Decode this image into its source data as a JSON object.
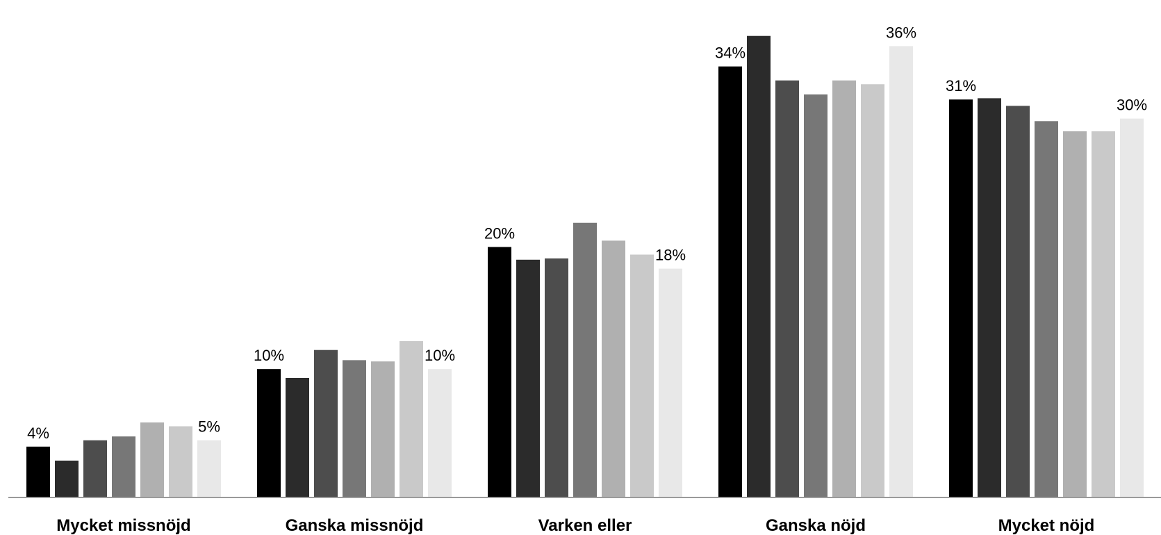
{
  "chart_data": {
    "type": "bar",
    "title": "",
    "xlabel": "",
    "ylabel": "",
    "ylim": [
      0,
      38
    ],
    "grid": false,
    "legend": "none",
    "categories": [
      "Mycket missnöjd",
      "Ganska missnöjd",
      "Varken eller",
      "Ganska nöjd",
      "Mycket nöjd"
    ],
    "series_colors": [
      "#000000",
      "#2b2b2b",
      "#4d4d4d",
      "#777777",
      "#b0b0b0",
      "#c9c9c9",
      "#e8e8e8"
    ],
    "series": [
      {
        "values": [
          4.0,
          10.1,
          19.7,
          33.9,
          31.3
        ]
      },
      {
        "values": [
          2.9,
          9.4,
          18.7,
          36.3,
          31.4
        ]
      },
      {
        "values": [
          4.5,
          11.6,
          18.8,
          32.8,
          30.8
        ]
      },
      {
        "values": [
          4.8,
          10.8,
          21.6,
          31.7,
          29.6
        ]
      },
      {
        "values": [
          5.9,
          10.7,
          20.2,
          32.8,
          28.8
        ]
      },
      {
        "values": [
          5.6,
          12.3,
          19.1,
          32.5,
          28.8
        ]
      },
      {
        "values": [
          4.5,
          10.1,
          18.0,
          35.5,
          29.8
        ]
      }
    ],
    "data_labels": [
      {
        "category": 0,
        "series": 0,
        "text": "4%"
      },
      {
        "category": 0,
        "series": 6,
        "text": "5%"
      },
      {
        "category": 1,
        "series": 0,
        "text": "10%"
      },
      {
        "category": 1,
        "series": 6,
        "text": "10%"
      },
      {
        "category": 2,
        "series": 0,
        "text": "20%"
      },
      {
        "category": 2,
        "series": 6,
        "text": "18%"
      },
      {
        "category": 3,
        "series": 0,
        "text": "34%"
      },
      {
        "category": 3,
        "series": 6,
        "text": "36%"
      },
      {
        "category": 4,
        "series": 0,
        "text": "31%"
      },
      {
        "category": 4,
        "series": 6,
        "text": "30%"
      }
    ]
  }
}
